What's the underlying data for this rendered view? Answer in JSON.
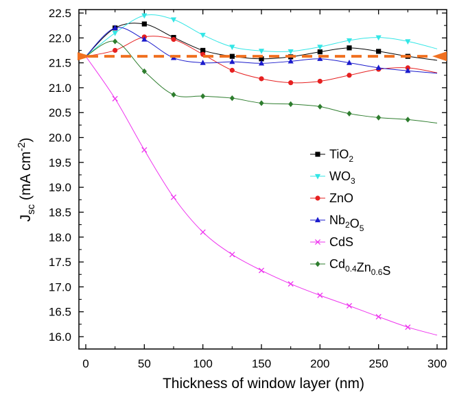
{
  "chart_data": {
    "type": "line",
    "xlabel": "Thickness of window layer (nm)",
    "ylabel": {
      "main": "J",
      "sub": "sc",
      "unit_pre": " (mA cm",
      "unit_sup": "-2",
      "unit_post": ")"
    },
    "xlim": [
      0,
      300
    ],
    "ylim": [
      16.0,
      22.5
    ],
    "x_ticks": [
      0,
      50,
      100,
      150,
      200,
      250,
      300
    ],
    "y_ticks": [
      16.0,
      16.5,
      17.0,
      17.5,
      18.0,
      18.5,
      19.0,
      19.5,
      20.0,
      20.5,
      21.0,
      21.5,
      22.0,
      22.5
    ],
    "grid": false,
    "legend_position": "right-center",
    "reference_line": {
      "y": 21.63,
      "color": "#f07020",
      "style": "dashed",
      "end_markers": "triangles"
    },
    "series": [
      {
        "name": "TiO2",
        "parts": [
          {
            "t": "TiO",
            "s": ""
          },
          {
            "t": "2",
            "s": "sub"
          }
        ],
        "color": "#000000",
        "marker": "square",
        "points": [
          [
            0,
            21.63
          ],
          [
            25,
            22.2
          ],
          [
            50,
            22.28
          ],
          [
            75,
            22.01
          ],
          [
            100,
            21.75
          ],
          [
            125,
            21.63
          ],
          [
            150,
            21.58
          ],
          [
            175,
            21.62
          ],
          [
            200,
            21.72
          ],
          [
            225,
            21.8
          ],
          [
            250,
            21.73
          ],
          [
            275,
            21.63
          ],
          [
            300,
            21.55
          ]
        ]
      },
      {
        "name": "WO3",
        "parts": [
          {
            "t": "WO",
            "s": ""
          },
          {
            "t": "3",
            "s": "sub"
          }
        ],
        "color": "#33e6e6",
        "marker": "triangle-down",
        "points": [
          [
            0,
            21.63
          ],
          [
            25,
            22.1
          ],
          [
            50,
            22.45
          ],
          [
            75,
            22.37
          ],
          [
            100,
            22.06
          ],
          [
            125,
            21.82
          ],
          [
            150,
            21.74
          ],
          [
            175,
            21.73
          ],
          [
            200,
            21.82
          ],
          [
            225,
            21.95
          ],
          [
            250,
            22.01
          ],
          [
            275,
            21.93
          ],
          [
            300,
            21.78
          ]
        ]
      },
      {
        "name": "ZnO",
        "parts": [
          {
            "t": "ZnO",
            "s": ""
          }
        ],
        "color": "#e62020",
        "marker": "circle",
        "points": [
          [
            0,
            21.63
          ],
          [
            25,
            21.75
          ],
          [
            50,
            22.02
          ],
          [
            75,
            21.97
          ],
          [
            100,
            21.67
          ],
          [
            125,
            21.35
          ],
          [
            150,
            21.18
          ],
          [
            175,
            21.1
          ],
          [
            200,
            21.13
          ],
          [
            225,
            21.25
          ],
          [
            250,
            21.37
          ],
          [
            275,
            21.4
          ],
          [
            300,
            21.3
          ]
        ]
      },
      {
        "name": "Nb2O5",
        "parts": [
          {
            "t": "Nb",
            "s": ""
          },
          {
            "t": "2",
            "s": "sub"
          },
          {
            "t": "O",
            "s": ""
          },
          {
            "t": "5",
            "s": "sub"
          }
        ],
        "color": "#1a1acc",
        "marker": "triangle-up",
        "points": [
          [
            0,
            21.63
          ],
          [
            25,
            22.2
          ],
          [
            50,
            21.97
          ],
          [
            75,
            21.6
          ],
          [
            100,
            21.5
          ],
          [
            125,
            21.52
          ],
          [
            150,
            21.49
          ],
          [
            175,
            21.53
          ],
          [
            200,
            21.58
          ],
          [
            225,
            21.5
          ],
          [
            250,
            21.4
          ],
          [
            275,
            21.34
          ],
          [
            300,
            21.29
          ]
        ]
      },
      {
        "name": "CdS",
        "parts": [
          {
            "t": "CdS",
            "s": ""
          }
        ],
        "color": "#ee33ee",
        "marker": "x",
        "points": [
          [
            0,
            21.63
          ],
          [
            25,
            20.78
          ],
          [
            50,
            19.75
          ],
          [
            75,
            18.8
          ],
          [
            100,
            18.1
          ],
          [
            125,
            17.65
          ],
          [
            150,
            17.33
          ],
          [
            175,
            17.06
          ],
          [
            200,
            16.83
          ],
          [
            225,
            16.62
          ],
          [
            250,
            16.4
          ],
          [
            275,
            16.19
          ],
          [
            300,
            16.03
          ]
        ]
      },
      {
        "name": "Cd0.4Zn0.6S",
        "parts": [
          {
            "t": "Cd",
            "s": ""
          },
          {
            "t": "0.4",
            "s": "sub"
          },
          {
            "t": "Zn",
            "s": ""
          },
          {
            "t": "0.6",
            "s": "sub"
          },
          {
            "t": "S",
            "s": ""
          }
        ],
        "color": "#2e7d2e",
        "marker": "diamond",
        "points": [
          [
            0,
            21.63
          ],
          [
            25,
            21.93
          ],
          [
            50,
            21.33
          ],
          [
            75,
            20.86
          ],
          [
            100,
            20.83
          ],
          [
            125,
            20.79
          ],
          [
            150,
            20.69
          ],
          [
            175,
            20.67
          ],
          [
            200,
            20.62
          ],
          [
            225,
            20.48
          ],
          [
            250,
            20.4
          ],
          [
            275,
            20.36
          ],
          [
            300,
            20.29
          ]
        ]
      }
    ]
  }
}
